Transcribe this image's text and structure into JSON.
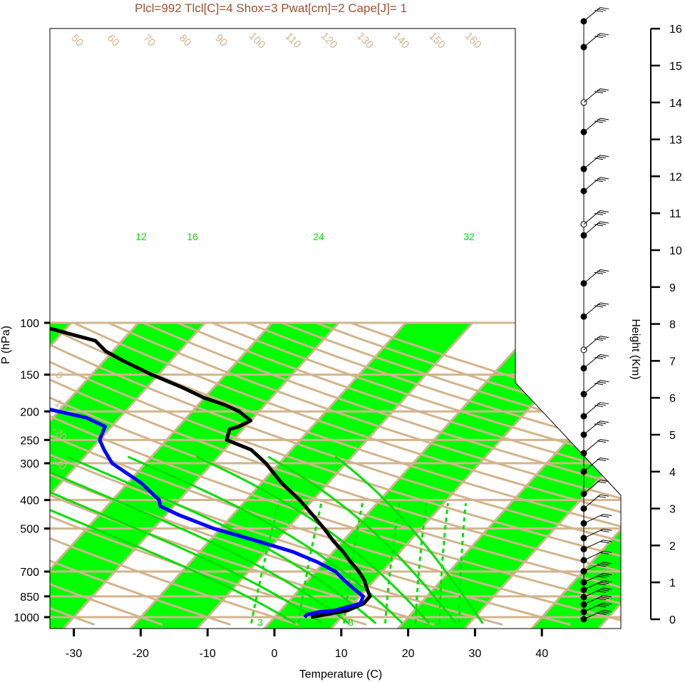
{
  "title": "Plcl=992 Tlcl[C]=4 Shox=3 Pwat[cm]=2 Cape[J]= 1",
  "colors": {
    "band": "#00ff00",
    "isotherm": "#d2b48c",
    "temperature": "#000000",
    "dewpoint": "#0000ff",
    "moist_adiabat": "#00e000",
    "title": "#a0522d",
    "parcel": "#c0c0a0"
  },
  "chart_data": {
    "type": "line",
    "subtype": "skew-T log-P diagram",
    "title": "Plcl=992 Tlcl[C]=4 Shox=3 Pwat[cm]=2 Cape[J]= 1",
    "xlabel": "Temperature (C)",
    "ylabel": "P (hPa)",
    "y2label": "Height (Km)",
    "x_ticks": [
      -30,
      -20,
      -10,
      0,
      10,
      20,
      30,
      40
    ],
    "xlim": [
      -33.5,
      52
    ],
    "y_ticks": [
      100,
      150,
      200,
      250,
      300,
      400,
      500,
      700,
      850,
      1000
    ],
    "ylim": [
      1050,
      100
    ],
    "y_scale": "log",
    "height_ticks": [
      0,
      1,
      2,
      3,
      4,
      5,
      6,
      7,
      8,
      9,
      10,
      11,
      12,
      13,
      14,
      15,
      16
    ],
    "isotherm_labels": [
      -30,
      -20,
      -10,
      0,
      10,
      20,
      30,
      40,
      50,
      60,
      70,
      80,
      90,
      100,
      110,
      120,
      130,
      140,
      150,
      160
    ],
    "mixing_ratio_labels_top": [
      12,
      16,
      24,
      32
    ],
    "mixing_ratio_labels_bottom": [
      3,
      8
    ],
    "series": [
      {
        "name": "Temperature",
        "pressure": [
          1000,
          950,
          900,
          850,
          800,
          750,
          700,
          650,
          600,
          550,
          500,
          450,
          400,
          350,
          300,
          270,
          250,
          230,
          225,
          215,
          200,
          190,
          180,
          165,
          150,
          135,
          125,
          115,
          110,
          105,
          100
        ],
        "temperature": [
          5.5,
          10,
          11.5,
          11.5,
          10,
          8.5,
          6.5,
          4,
          1.5,
          -1.5,
          -4.5,
          -8,
          -12,
          -17,
          -22,
          -26,
          -31,
          -32,
          -31,
          -30,
          -33,
          -36,
          -40,
          -45,
          -51,
          -57,
          -61,
          -64,
          -68,
          -72,
          -77
        ]
      },
      {
        "name": "Dewpoint",
        "pressure": [
          1000,
          980,
          960,
          950,
          900,
          850,
          800,
          750,
          700,
          650,
          600,
          550,
          500,
          450,
          420,
          400,
          350,
          300,
          270,
          250,
          225,
          210,
          200,
          190,
          150,
          100
        ],
        "temperature": [
          4.5,
          4.5,
          6,
          8,
          11,
          10.5,
          8,
          5.5,
          3,
          -1,
          -6,
          -13,
          -21,
          -28,
          -32,
          -33,
          -38,
          -45,
          -48,
          -50,
          -51,
          -55,
          -60,
          -65,
          -72,
          -87
        ]
      }
    ],
    "wind_barbs_height_km": [
      0,
      0.2,
      0.4,
      0.6,
      0.8,
      1,
      1.3,
      1.6,
      1.9,
      2.2,
      2.6,
      3,
      3.4,
      4,
      4.5,
      5,
      5.5,
      6.1,
      6.8,
      7.3,
      8.2,
      9.1,
      10.4,
      10.7,
      11.6,
      12.2,
      13.2,
      14,
      15.5,
      16.2
    ],
    "legend": "none",
    "grid": true
  }
}
